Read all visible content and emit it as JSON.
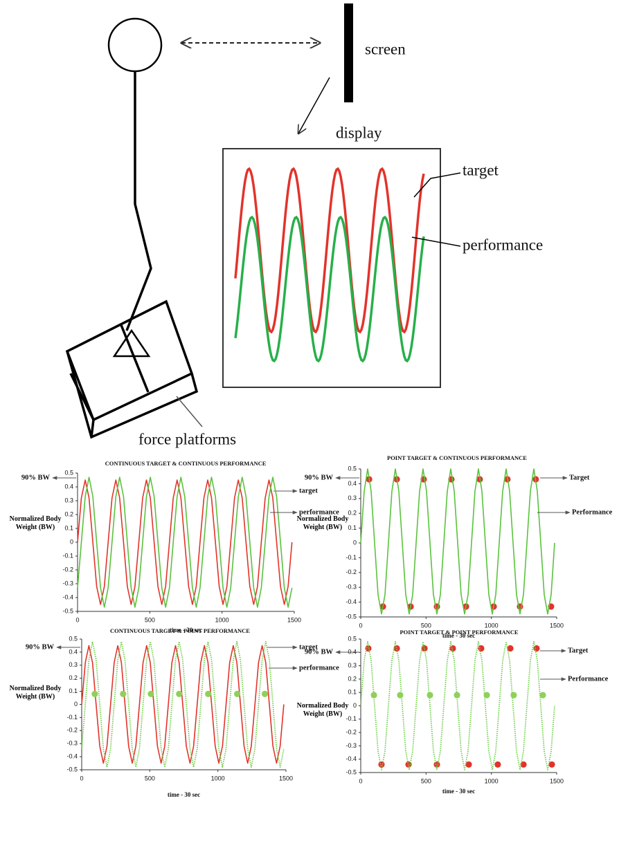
{
  "diagram": {
    "screen": "screen",
    "display": "display",
    "target": "target",
    "performance": "performance",
    "force_platforms": "force platforms"
  },
  "chart_data": [
    {
      "type": "line",
      "title": "CONTINUOUS TARGET & CONTINUOUS PERFORMANCE",
      "annotation": "90% BW",
      "y_label": "Normalized Body Weight (BW)",
      "x_label": "time - 30 sec",
      "xlim": [
        0,
        1500
      ],
      "xticks": [
        0,
        500,
        1000,
        1500
      ],
      "ylim": [
        -0.5,
        0.5
      ],
      "yticks": [
        0.5,
        0.4,
        0.3,
        0.2,
        0.1,
        0,
        -0.1,
        -0.2,
        -0.3,
        -0.4,
        -0.5
      ],
      "x": [
        0,
        26.5,
        53,
        79.5,
        106,
        132.5,
        159,
        185.5,
        212,
        238.5,
        265,
        291.5,
        318,
        344.5,
        371,
        397.5,
        424,
        450.5,
        477,
        503.5,
        530,
        556.5,
        583,
        609.5,
        636,
        662.5,
        689,
        715.5,
        742,
        768.5,
        795,
        821.5,
        848,
        874.5,
        901,
        927.5,
        954,
        980.5,
        1007,
        1033.5,
        1060,
        1086.5,
        1113,
        1139.5,
        1166,
        1192.5,
        1219,
        1245.5,
        1272,
        1298.5,
        1325,
        1351.5,
        1378,
        1404.5,
        1431,
        1457.5,
        1484
      ],
      "series": [
        {
          "name": "target",
          "color": "#e2332b",
          "style": "line",
          "values": [
            0,
            0.32,
            0.45,
            0.32,
            0,
            -0.32,
            -0.45,
            -0.32,
            0,
            0.32,
            0.45,
            0.32,
            0,
            -0.32,
            -0.45,
            -0.32,
            0,
            0.32,
            0.45,
            0.32,
            0,
            -0.32,
            -0.45,
            -0.32,
            0,
            0.32,
            0.45,
            0.32,
            0,
            -0.32,
            -0.45,
            -0.32,
            0,
            0.32,
            0.45,
            0.32,
            0,
            -0.32,
            -0.45,
            -0.32,
            0,
            0.32,
            0.45,
            0.32,
            0,
            -0.32,
            -0.45,
            -0.32,
            0,
            0.32,
            0.45,
            0.32,
            0,
            -0.32,
            -0.45,
            -0.32,
            0
          ]
        },
        {
          "name": "performance",
          "color": "#5ac23c",
          "style": "line",
          "values": [
            -0.33,
            0,
            0.33,
            0.47,
            0.33,
            0,
            -0.33,
            -0.47,
            -0.33,
            0,
            0.33,
            0.47,
            0.33,
            0,
            -0.33,
            -0.47,
            -0.33,
            0,
            0.33,
            0.47,
            0.33,
            0,
            -0.33,
            -0.47,
            -0.33,
            0,
            0.33,
            0.47,
            0.33,
            0,
            -0.33,
            -0.47,
            -0.33,
            0,
            0.33,
            0.47,
            0.33,
            0,
            -0.33,
            -0.47,
            -0.33,
            0,
            0.33,
            0.47,
            0.33,
            0,
            -0.33,
            -0.47,
            -0.33,
            0,
            0.33,
            0.47,
            0.33,
            0,
            -0.33,
            -0.47,
            -0.33
          ]
        }
      ]
    },
    {
      "type": "line",
      "title": "POINT TARGET & CONTINUOUS PERFORMANCE",
      "annotation": "90% BW",
      "y_label": "Normalized Body Weight (BW)",
      "x_label": "time - 30 sec",
      "xlim": [
        0,
        1500
      ],
      "xticks": [
        0,
        500,
        1000,
        1500
      ],
      "ylim": [
        -0.5,
        0.5
      ],
      "yticks": [
        0.5,
        0.4,
        0.3,
        0.2,
        0.1,
        0,
        -0.1,
        -0.2,
        -0.3,
        -0.4,
        -0.5
      ],
      "x": [
        0,
        26.5,
        53,
        79.5,
        106,
        132.5,
        159,
        185.5,
        212,
        238.5,
        265,
        291.5,
        318,
        344.5,
        371,
        397.5,
        424,
        450.5,
        477,
        503.5,
        530,
        556.5,
        583,
        609.5,
        636,
        662.5,
        689,
        715.5,
        742,
        768.5,
        795,
        821.5,
        848,
        874.5,
        901,
        927.5,
        954,
        980.5,
        1007,
        1033.5,
        1060,
        1086.5,
        1113,
        1139.5,
        1166,
        1192.5,
        1219,
        1245.5,
        1272,
        1298.5,
        1325,
        1351.5,
        1378,
        1404.5,
        1431,
        1457.5,
        1484
      ],
      "series": [
        {
          "name": "Target",
          "color": "#e2332b",
          "style": "dots",
          "x": [
            64,
            170,
            276,
            382,
            482,
            583,
            694,
            806,
            911,
            1018,
            1123,
            1219,
            1340,
            1457
          ],
          "values": [
            0.43,
            -0.43,
            0.43,
            -0.43,
            0.43,
            -0.43,
            0.43,
            -0.43,
            0.43,
            -0.43,
            0.43,
            -0.43,
            0.43,
            -0.43
          ]
        },
        {
          "name": "Performance",
          "color": "#5ac23c",
          "style": "line",
          "values": [
            0,
            0.35,
            0.5,
            0.35,
            0,
            -0.35,
            -0.48,
            -0.35,
            0,
            0.35,
            0.5,
            0.35,
            0,
            -0.35,
            -0.48,
            -0.35,
            0,
            0.35,
            0.5,
            0.35,
            0,
            -0.35,
            -0.48,
            -0.35,
            0,
            0.35,
            0.5,
            0.35,
            0,
            -0.35,
            -0.48,
            -0.35,
            0,
            0.35,
            0.5,
            0.35,
            0,
            -0.35,
            -0.48,
            -0.35,
            0,
            0.35,
            0.5,
            0.35,
            0,
            -0.35,
            -0.48,
            -0.35,
            0,
            0.35,
            0.5,
            0.35,
            0,
            -0.35,
            -0.48,
            -0.35,
            0
          ]
        }
      ]
    },
    {
      "type": "line",
      "title": "CONTINUOUS TARGET & POINT PERFORMANCE",
      "annotation": "90% BW",
      "y_label": "Normalized Body Weight (BW)",
      "x_label": "time - 30 sec",
      "xlim": [
        0,
        1500
      ],
      "xticks": [
        0,
        500,
        1000,
        1500
      ],
      "ylim": [
        -0.5,
        0.5
      ],
      "yticks": [
        0.5,
        0.4,
        0.3,
        0.2,
        0.1,
        0,
        -0.1,
        -0.2,
        -0.3,
        -0.4,
        -0.5
      ],
      "x": [
        0,
        26.5,
        53,
        79.5,
        106,
        132.5,
        159,
        185.5,
        212,
        238.5,
        265,
        291.5,
        318,
        344.5,
        371,
        397.5,
        424,
        450.5,
        477,
        503.5,
        530,
        556.5,
        583,
        609.5,
        636,
        662.5,
        689,
        715.5,
        742,
        768.5,
        795,
        821.5,
        848,
        874.5,
        901,
        927.5,
        954,
        980.5,
        1007,
        1033.5,
        1060,
        1086.5,
        1113,
        1139.5,
        1166,
        1192.5,
        1219,
        1245.5,
        1272,
        1298.5,
        1325,
        1351.5,
        1378,
        1404.5,
        1431,
        1457.5,
        1484
      ],
      "series": [
        {
          "name": "target",
          "color": "#e2332b",
          "style": "line",
          "values": [
            0,
            0.32,
            0.45,
            0.32,
            0,
            -0.32,
            -0.45,
            -0.32,
            0,
            0.32,
            0.45,
            0.32,
            0,
            -0.32,
            -0.45,
            -0.32,
            0,
            0.32,
            0.45,
            0.32,
            0,
            -0.32,
            -0.45,
            -0.32,
            0,
            0.32,
            0.45,
            0.32,
            0,
            -0.32,
            -0.45,
            -0.32,
            0,
            0.32,
            0.45,
            0.32,
            0,
            -0.32,
            -0.45,
            -0.32,
            0,
            0.32,
            0.45,
            0.32,
            0,
            -0.32,
            -0.45,
            -0.32,
            0,
            0.32,
            0.45,
            0.32,
            0,
            -0.32,
            -0.45,
            -0.32,
            0
          ]
        },
        {
          "name": "performance",
          "color": "#6fce4a",
          "style": "dotted",
          "values": [
            -0.34,
            0,
            0.34,
            0.48,
            0.34,
            0,
            -0.34,
            -0.48,
            -0.34,
            0,
            0.34,
            0.48,
            0.34,
            0,
            -0.34,
            -0.48,
            -0.34,
            0,
            0.34,
            0.48,
            0.34,
            0,
            -0.34,
            -0.48,
            -0.34,
            0,
            0.34,
            0.48,
            0.34,
            0,
            -0.34,
            -0.48,
            -0.34,
            0,
            0.34,
            0.48,
            0.34,
            0,
            -0.34,
            -0.48,
            -0.34,
            0,
            0.34,
            0.48,
            0.34,
            0,
            -0.34,
            -0.48,
            -0.34,
            0,
            0.34,
            0.48,
            0.34,
            0,
            -0.34,
            -0.48,
            -0.34
          ]
        },
        {
          "color": "#8fd05a",
          "style": "dots",
          "x": [
            96,
            304,
            508,
            716,
            929,
            1142,
            1345
          ],
          "values": [
            0.08,
            0.08,
            0.08,
            0.08,
            0.08,
            0.08,
            0.08
          ]
        }
      ]
    },
    {
      "type": "line",
      "title": "POINT TARGET & POINT PERFORMANCE",
      "annotation": "90% BW",
      "y_label": "Normalized Body Weight (BW)",
      "x_label": "time - 30 sec",
      "xlim": [
        0,
        1500
      ],
      "xticks": [
        0,
        500,
        1000,
        1500
      ],
      "ylim": [
        -0.5,
        0.5
      ],
      "yticks": [
        0.5,
        0.4,
        0.3,
        0.2,
        0.1,
        0,
        -0.1,
        -0.2,
        -0.3,
        -0.4,
        -0.5
      ],
      "x": [
        0,
        26.5,
        53,
        79.5,
        106,
        132.5,
        159,
        185.5,
        212,
        238.5,
        265,
        291.5,
        318,
        344.5,
        371,
        397.5,
        424,
        450.5,
        477,
        503.5,
        530,
        556.5,
        583,
        609.5,
        636,
        662.5,
        689,
        715.5,
        742,
        768.5,
        795,
        821.5,
        848,
        874.5,
        901,
        927.5,
        954,
        980.5,
        1007,
        1033.5,
        1060,
        1086.5,
        1113,
        1139.5,
        1166,
        1192.5,
        1219,
        1245.5,
        1272,
        1298.5,
        1325,
        1351.5,
        1378,
        1404.5,
        1431,
        1457.5,
        1484
      ],
      "series": [
        {
          "name": "Target",
          "color": "#e2332b",
          "style": "dots",
          "x": [
            58,
            159,
            276,
            366,
            488,
            583,
            705,
            827,
            922,
            1049,
            1145,
            1246,
            1346,
            1463
          ],
          "values": [
            0.43,
            -0.44,
            0.43,
            -0.44,
            0.43,
            -0.44,
            0.43,
            -0.44,
            0.43,
            -0.44,
            0.43,
            -0.44,
            0.43,
            -0.44
          ]
        },
        {
          "name": "Performance",
          "color": "#6fce4a",
          "style": "dotted",
          "values": [
            0,
            0.34,
            0.48,
            0.34,
            0,
            -0.34,
            -0.48,
            -0.34,
            0,
            0.34,
            0.48,
            0.34,
            0,
            -0.34,
            -0.48,
            -0.34,
            0,
            0.34,
            0.48,
            0.34,
            0,
            -0.34,
            -0.48,
            -0.34,
            0,
            0.34,
            0.48,
            0.34,
            0,
            -0.34,
            -0.48,
            -0.34,
            0,
            0.34,
            0.48,
            0.34,
            0,
            -0.34,
            -0.48,
            -0.34,
            0,
            0.34,
            0.48,
            0.34,
            0,
            -0.34,
            -0.48,
            -0.34,
            0,
            0.34,
            0.48,
            0.34,
            0,
            -0.34,
            -0.48,
            -0.34,
            0
          ]
        },
        {
          "color": "#8fd05a",
          "style": "dots",
          "x": [
            101,
            302,
            530,
            737,
            965,
            1171,
            1394
          ],
          "values": [
            0.08,
            0.08,
            0.08,
            0.08,
            0.08,
            0.08,
            0.08
          ]
        }
      ]
    }
  ]
}
